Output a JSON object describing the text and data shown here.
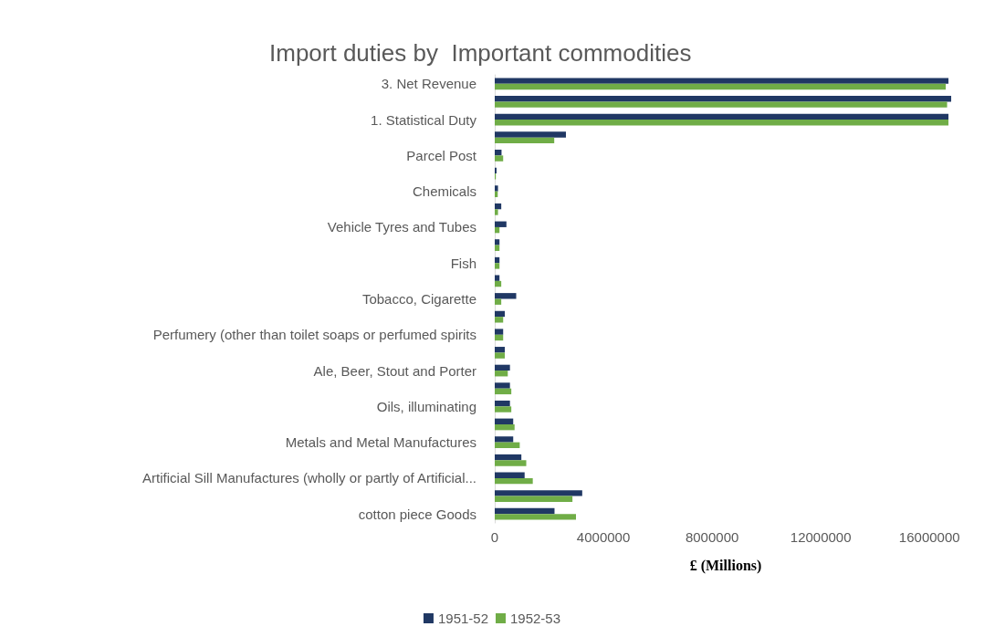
{
  "chart_data": {
    "type": "bar",
    "orientation": "horizontal",
    "title": "Import duties by  Important commodities",
    "xlabel": "£ (Millions)",
    "categories": [
      "3. Net Revenue",
      null,
      "1. Statistical Duty",
      null,
      "Parcel Post",
      null,
      "Chemicals",
      null,
      "Vehicle Tyres and Tubes",
      null,
      "Fish",
      null,
      "Tobacco, Cigarette",
      null,
      "Perfumery (other than toilet soaps or perfumed spirits",
      null,
      "Ale, Beer, Stout and Porter",
      null,
      "Oils, illuminating",
      null,
      "Metals and Metal Manufactures",
      null,
      "Artificial Sill Manufactures (wholly or partly of Artificial...",
      null,
      "cotton piece Goods"
    ],
    "series": [
      {
        "name": "1951-52",
        "color": "#203864",
        "values": [
          16700000,
          16800000,
          16700000,
          2620000,
          250000,
          66000,
          120000,
          240000,
          430000,
          175000,
          175000,
          175000,
          790000,
          370000,
          310000,
          370000,
          560000,
          560000,
          560000,
          680000,
          680000,
          980000,
          1100000,
          3220000,
          2200000
        ]
      },
      {
        "name": "1952-53",
        "color": "#70ad47",
        "values": [
          16600000,
          16650000,
          16700000,
          2190000,
          310000,
          40000,
          110000,
          120000,
          175000,
          175000,
          175000,
          240000,
          240000,
          310000,
          310000,
          370000,
          480000,
          610000,
          610000,
          730000,
          920000,
          1160000,
          1400000,
          2860000,
          2990000
        ]
      }
    ],
    "xlim": [
      0,
      17000000
    ],
    "xticks": [
      0,
      4000000,
      8000000,
      12000000,
      16000000
    ],
    "grid": false,
    "legend": "bottom"
  }
}
